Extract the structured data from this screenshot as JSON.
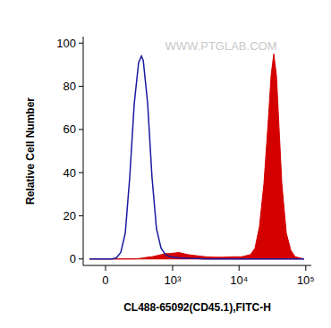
{
  "chart_data": {
    "type": "histogram_overlay",
    "x_label": "CL488-65092(CD45.1),FITC-H",
    "y_label": "Relative Cell Number",
    "annotation": "WWW.PTGLAB.COM",
    "x": [
      -117,
      -50,
      12,
      44,
      76,
      110,
      147,
      187,
      232,
      281,
      316,
      340,
      404,
      476,
      562,
      664,
      778,
      912,
      1248,
      1706,
      2326,
      3170,
      4320,
      5880,
      8000,
      10900,
      14840,
      17320,
      20200,
      23600,
      27520,
      30200,
      33120,
      36340,
      39880,
      43760,
      51080,
      59600,
      69400,
      94600
    ],
    "series": [
      {
        "type": "area",
        "color": "#d40000",
        "values": [
          0,
          0,
          0,
          0,
          0,
          0,
          0,
          0,
          0,
          0.2,
          0.3,
          0.5,
          0.8,
          1,
          1.5,
          2,
          2.5,
          2.5,
          3,
          2,
          1.5,
          1,
          0.8,
          0.8,
          1,
          1,
          2,
          5,
          15,
          35,
          65,
          85,
          95,
          85,
          60,
          35,
          12,
          4,
          1,
          0
        ]
      },
      {
        "type": "line",
        "color": "#1a1aa0",
        "values": [
          0,
          0,
          0,
          0,
          0.5,
          3,
          12,
          38,
          72,
          91,
          94,
          92,
          72,
          38,
          14,
          5,
          2,
          1,
          0.5,
          0.3,
          0.2,
          0,
          0,
          0,
          0,
          0,
          0,
          0,
          0,
          0,
          0,
          0,
          0,
          0,
          0,
          0,
          0,
          0,
          0,
          0
        ]
      }
    ],
    "xlim": [
      -170,
      121000
    ],
    "xticks": [
      0,
      {
        "value": 1000,
        "label": "10³"
      },
      {
        "value": 10000,
        "label": "10⁴"
      },
      {
        "value": 100000,
        "label": "10⁵"
      }
    ],
    "ylim": [
      -3,
      103
    ],
    "yticks": [
      0,
      20,
      40,
      60,
      80,
      100
    ],
    "grid": false
  }
}
